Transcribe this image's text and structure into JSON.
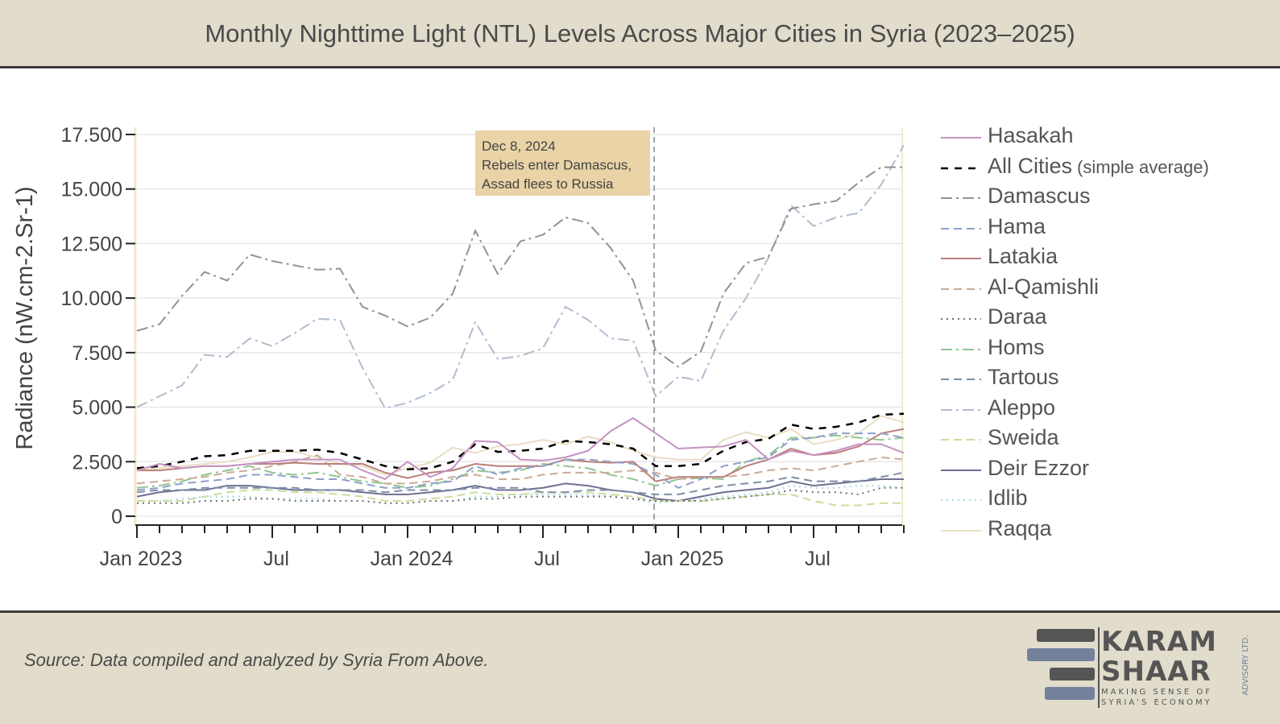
{
  "title": "Monthly Nighttime Light (NTL) Levels Across Major Cities in Syria (2023–2025)",
  "source": "Source: Data compiled and analyzed by Syria From Above.",
  "logo": {
    "line1": "KARAM",
    "line2": "SHAAR",
    "tagline1": "MAKING SENSE OF",
    "tagline2": "SYRIA'S ECONOMY",
    "side": "ADVISORY LTD."
  },
  "chart_data": {
    "type": "line",
    "title": "Monthly Nighttime Light (NTL) Levels Across Major Cities in Syria (2023–2025)",
    "ylabel": "Radiance (nW.cm-2.Sr-1)",
    "xlabel": "",
    "ylim": [
      0,
      17500
    ],
    "yticks": [
      "0",
      "2.500",
      "5.000",
      "7.500",
      "10.000",
      "12.500",
      "15.000",
      "17.500"
    ],
    "ytick_values": [
      0,
      2500,
      5000,
      7500,
      10000,
      12500,
      15000,
      17500
    ],
    "xticks": [
      {
        "label": "Jan 2023",
        "index": 0
      },
      {
        "label": "Jul",
        "index": 6
      },
      {
        "label": "Jan 2024",
        "index": 12
      },
      {
        "label": "Jul",
        "index": 18
      },
      {
        "label": "Jan 2025",
        "index": 24
      },
      {
        "label": "Jul",
        "index": 30
      }
    ],
    "x_start": "2023-01",
    "x_months": 35,
    "grid": true,
    "legend_placement": "right",
    "annotation": {
      "index": 23,
      "lines": [
        "Dec 8, 2024",
        "Rebels enter Damascus,",
        "Assad flees to Russia"
      ]
    },
    "series": [
      {
        "name": "Hasakah",
        "note": "",
        "color": "#c592c2",
        "dash": "",
        "width": 2,
        "values": [
          2.1,
          2.4,
          2.2,
          2.3,
          2.3,
          2.4,
          2.5,
          2.6,
          2.6,
          2.6,
          2.1,
          1.7,
          2.5,
          1.8,
          2.2,
          3.45,
          3.4,
          2.6,
          2.55,
          2.7,
          3.0,
          3.9,
          4.5,
          3.8,
          3.1,
          3.15,
          3.2,
          3.5,
          2.6,
          3.0,
          2.8,
          3.0,
          3.3,
          3.3,
          2.9
        ]
      },
      {
        "name": "All Cities",
        "note": "(simple average)",
        "color": "#000000",
        "dash": "9,8",
        "width": 2.5,
        "values": [
          2.2,
          2.3,
          2.5,
          2.75,
          2.8,
          3.0,
          3.0,
          3.0,
          3.05,
          2.9,
          2.6,
          2.3,
          2.15,
          2.2,
          2.5,
          3.3,
          2.95,
          3.0,
          3.1,
          3.45,
          3.4,
          3.3,
          3.1,
          2.3,
          2.3,
          2.4,
          3.0,
          3.4,
          3.55,
          4.2,
          4.0,
          4.1,
          4.3,
          4.65,
          4.7
        ]
      },
      {
        "name": "Damascus",
        "note": "",
        "color": "#939393",
        "dash": "14,5,3,5",
        "width": 2,
        "values": [
          8.5,
          8.8,
          10.1,
          11.2,
          10.8,
          12.0,
          11.7,
          11.5,
          11.3,
          11.35,
          9.6,
          9.2,
          8.7,
          9.1,
          10.2,
          13.1,
          11.1,
          12.6,
          12.9,
          13.7,
          13.45,
          12.3,
          10.8,
          7.6,
          6.85,
          7.55,
          10.2,
          11.6,
          11.9,
          14.1,
          14.3,
          14.45,
          15.3,
          16.0,
          16.0
        ]
      },
      {
        "name": "Hama",
        "note": "",
        "color": "#8f9fcb",
        "dash": "10,6",
        "width": 2,
        "values": [
          1.2,
          1.3,
          1.5,
          1.6,
          1.7,
          1.9,
          1.9,
          1.8,
          1.7,
          1.7,
          1.5,
          1.3,
          1.3,
          1.5,
          1.6,
          2.3,
          1.9,
          2.2,
          2.3,
          2.6,
          2.6,
          2.5,
          2.4,
          1.9,
          1.3,
          1.7,
          2.3,
          2.5,
          2.7,
          3.5,
          3.6,
          3.8,
          3.8,
          3.8,
          3.6
        ]
      },
      {
        "name": "Latakia",
        "note": "",
        "color": "#bb7f7b",
        "dash": "",
        "width": 2,
        "values": [
          2.1,
          2.1,
          2.2,
          2.3,
          2.3,
          2.4,
          2.4,
          2.45,
          2.4,
          2.4,
          2.4,
          2.0,
          1.75,
          2.0,
          2.1,
          2.4,
          2.3,
          2.3,
          2.3,
          2.6,
          2.5,
          2.45,
          2.5,
          1.6,
          1.8,
          1.8,
          1.8,
          2.3,
          2.6,
          3.1,
          2.8,
          2.9,
          3.2,
          3.8,
          4.0
        ]
      },
      {
        "name": "Al-Qamishli",
        "note": "",
        "color": "#cbab97",
        "dash": "10,6",
        "width": 2,
        "values": [
          1.5,
          1.6,
          1.7,
          1.8,
          2.0,
          2.1,
          2.3,
          2.5,
          2.8,
          1.9,
          1.8,
          1.5,
          1.5,
          1.6,
          1.8,
          1.9,
          1.7,
          1.7,
          1.9,
          2.0,
          2.0,
          2.0,
          2.1,
          2.0,
          1.7,
          1.8,
          1.8,
          1.9,
          2.1,
          2.2,
          2.1,
          2.3,
          2.5,
          2.7,
          2.6
        ]
      },
      {
        "name": "Daraa",
        "note": "",
        "color": "#707070",
        "dash": "2,5",
        "width": 2,
        "values": [
          0.6,
          0.6,
          0.6,
          0.7,
          0.7,
          0.8,
          0.8,
          0.7,
          0.7,
          0.7,
          0.7,
          0.6,
          0.6,
          0.7,
          0.7,
          0.8,
          0.8,
          0.9,
          0.9,
          0.9,
          0.9,
          0.9,
          0.8,
          0.7,
          0.7,
          0.7,
          0.8,
          0.9,
          1.0,
          1.2,
          1.1,
          1.1,
          1.0,
          1.3,
          1.3
        ]
      },
      {
        "name": "Homs",
        "note": "",
        "color": "#8fc68f",
        "dash": "14,5,3,5",
        "width": 2,
        "values": [
          1.3,
          1.4,
          1.6,
          1.9,
          2.1,
          2.3,
          2.0,
          1.9,
          2.0,
          1.8,
          1.6,
          1.5,
          1.3,
          1.4,
          1.7,
          2.1,
          2.0,
          2.1,
          2.4,
          2.3,
          2.2,
          1.9,
          1.7,
          1.4,
          1.7,
          1.75,
          1.7,
          2.5,
          2.8,
          3.6,
          3.6,
          3.7,
          3.6,
          3.5,
          3.6
        ]
      },
      {
        "name": "Tartous",
        "note": "",
        "color": "#7d8fa9",
        "dash": "10,6",
        "width": 2,
        "values": [
          1.1,
          1.2,
          1.2,
          1.3,
          1.3,
          1.3,
          1.3,
          1.3,
          1.2,
          1.2,
          1.2,
          1.1,
          1.2,
          1.2,
          1.2,
          1.3,
          1.3,
          1.3,
          1.1,
          1.1,
          1.2,
          1.2,
          1.1,
          1.0,
          1.0,
          1.2,
          1.4,
          1.5,
          1.6,
          1.8,
          1.6,
          1.6,
          1.6,
          1.8,
          2.0
        ]
      },
      {
        "name": "Aleppo",
        "note": "",
        "color": "#b1bccd",
        "dash": "14,5,3,5",
        "width": 2,
        "values": [
          5.0,
          5.5,
          6.0,
          7.4,
          7.3,
          8.15,
          7.8,
          8.4,
          9.05,
          9.0,
          6.8,
          4.95,
          5.2,
          5.65,
          6.25,
          8.9,
          7.2,
          7.35,
          7.7,
          9.6,
          9.0,
          8.15,
          8.05,
          5.5,
          6.4,
          6.2,
          8.5,
          10.0,
          11.85,
          14.25,
          13.3,
          13.7,
          13.9,
          15.2,
          17.0
        ]
      },
      {
        "name": "Sweida",
        "note": "",
        "color": "#cbdd9c",
        "dash": "10,6",
        "width": 2,
        "values": [
          0.7,
          0.7,
          0.7,
          0.9,
          1.1,
          1.2,
          1.2,
          1.1,
          1.1,
          1.0,
          0.9,
          0.7,
          0.7,
          0.8,
          0.9,
          1.1,
          1.0,
          1.0,
          1.1,
          1.1,
          1.1,
          1.0,
          0.9,
          0.7,
          0.7,
          0.7,
          0.8,
          0.9,
          1.0,
          1.0,
          0.7,
          0.5,
          0.5,
          0.6,
          0.6
        ]
      },
      {
        "name": "Deir Ezzor",
        "note": "",
        "color": "#6f6f91",
        "dash": "",
        "width": 2,
        "values": [
          0.9,
          1.1,
          1.2,
          1.2,
          1.4,
          1.4,
          1.3,
          1.2,
          1.2,
          1.2,
          1.1,
          1.0,
          1.0,
          1.1,
          1.2,
          1.4,
          1.2,
          1.2,
          1.3,
          1.5,
          1.4,
          1.2,
          1.1,
          0.8,
          0.7,
          0.9,
          1.1,
          1.2,
          1.3,
          1.6,
          1.4,
          1.5,
          1.6,
          1.7,
          1.7
        ]
      },
      {
        "name": "Idlib",
        "note": "",
        "color": "#a9d5ea",
        "dash": "2,5",
        "width": 2,
        "values": [
          0.7,
          0.7,
          0.8,
          0.9,
          0.9,
          0.9,
          0.8,
          0.8,
          0.8,
          0.7,
          0.7,
          0.6,
          0.6,
          0.7,
          0.7,
          0.9,
          0.9,
          1.0,
          1.0,
          1.0,
          1.0,
          0.9,
          0.8,
          0.6,
          0.7,
          0.8,
          0.9,
          1.0,
          1.1,
          1.4,
          1.3,
          1.3,
          1.4,
          1.4,
          1.3
        ]
      },
      {
        "name": "Raqqa",
        "note": "",
        "color": "#e9dec3",
        "dash": "",
        "width": 2,
        "values": [
          2.1,
          2.2,
          2.3,
          2.4,
          2.5,
          2.7,
          2.95,
          2.95,
          2.7,
          2.4,
          2.3,
          1.9,
          2.2,
          2.45,
          3.15,
          2.9,
          3.2,
          3.3,
          3.5,
          3.3,
          3.65,
          3.4,
          3.0,
          2.7,
          2.6,
          2.6,
          3.5,
          3.85,
          3.6,
          4.0,
          3.3,
          3.5,
          3.8,
          4.6,
          4.3
        ]
      }
    ],
    "value_units": "thousands"
  }
}
